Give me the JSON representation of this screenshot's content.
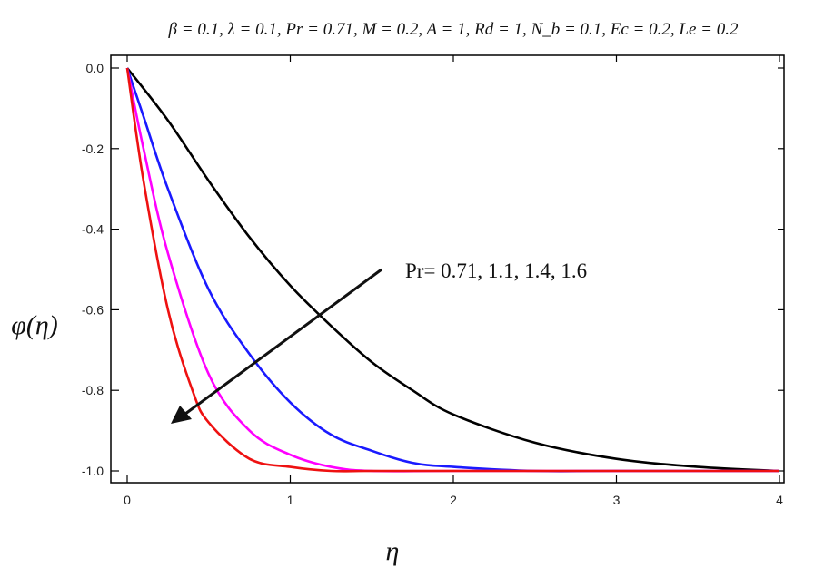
{
  "chart_data": {
    "type": "line",
    "title": "β = 0.1, λ = 0.1, Pr = 0.71, M = 0.2, A = 1, Rd = 1, N_b = 0.1, Ec = 0.2, Le = 0.2",
    "xlabel": "η",
    "ylabel": "φ(η)",
    "xlim": [
      0,
      4
    ],
    "ylim": [
      -1.0,
      0.0
    ],
    "x_ticks": [
      "0",
      "1",
      "2",
      "3",
      "4"
    ],
    "y_ticks": [
      "0.0",
      "-0.2",
      "-0.4",
      "-0.6",
      "-0.8",
      "-1.0"
    ],
    "annotation": "Pr= 0.71, 1.1, 1.4, 1.6",
    "grid": false,
    "series": [
      {
        "color": "#000000",
        "x": [
          0,
          0.25,
          0.5,
          0.75,
          1.0,
          1.25,
          1.5,
          1.75,
          2.0,
          2.5,
          3.0,
          3.5,
          4.0
        ],
        "y": [
          0,
          -0.13,
          -0.28,
          -0.42,
          -0.54,
          -0.64,
          -0.73,
          -0.8,
          -0.86,
          -0.93,
          -0.97,
          -0.99,
          -1.0
        ]
      },
      {
        "color": "#1a1aff",
        "x": [
          0,
          0.1,
          0.25,
          0.5,
          0.75,
          1.0,
          1.25,
          1.5,
          1.75,
          2.0,
          2.5,
          3.0,
          4.0
        ],
        "y": [
          0,
          -0.12,
          -0.3,
          -0.55,
          -0.71,
          -0.83,
          -0.91,
          -0.95,
          -0.98,
          -0.99,
          -1.0,
          -1.0,
          -1.0
        ]
      },
      {
        "color": "#ff00ff",
        "x": [
          0,
          0.1,
          0.25,
          0.5,
          0.75,
          1.0,
          1.25,
          1.5,
          2.0,
          3.0,
          4.0
        ],
        "y": [
          0,
          -0.2,
          -0.46,
          -0.76,
          -0.9,
          -0.96,
          -0.99,
          -1.0,
          -1.0,
          -1.0,
          -1.0
        ]
      },
      {
        "color": "#ee1111",
        "x": [
          0,
          0.1,
          0.25,
          0.4,
          0.5,
          0.75,
          1.0,
          1.25,
          1.5,
          2.0,
          3.0,
          4.0
        ],
        "y": [
          0,
          -0.28,
          -0.6,
          -0.8,
          -0.88,
          -0.97,
          -0.99,
          -1.0,
          -1.0,
          -1.0,
          -1.0,
          -1.0
        ]
      }
    ]
  }
}
